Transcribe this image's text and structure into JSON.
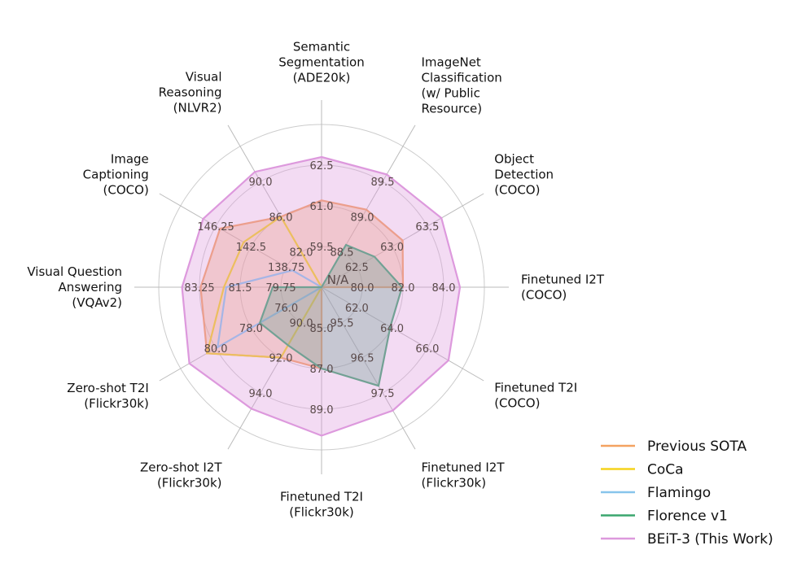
{
  "chart_data": {
    "type": "radar",
    "center_label": "N/A",
    "axes": [
      {
        "label": [
          "Semantic",
          "Segmentation",
          "(ADE20k)"
        ],
        "ticks": [
          "59.5",
          "61.0",
          "62.5"
        ]
      },
      {
        "label": [
          "ImageNet",
          "Classification",
          "(w/ Public",
          "Resource)"
        ],
        "ticks": [
          "88.5",
          "89.0",
          "89.5"
        ]
      },
      {
        "label": [
          "Object",
          "Detection",
          "(COCO)"
        ],
        "ticks": [
          "62.5",
          "63.0",
          "63.5"
        ]
      },
      {
        "label": [
          "Finetuned I2T",
          "(COCO)"
        ],
        "ticks": [
          "80.0",
          "82.0",
          "84.0"
        ]
      },
      {
        "label": [
          "Finetuned T2I",
          "(COCO)"
        ],
        "ticks": [
          "62.0",
          "64.0",
          "66.0"
        ]
      },
      {
        "label": [
          "Finetuned I2T",
          "(Flickr30k)"
        ],
        "ticks": [
          "95.5",
          "96.5",
          "97.5"
        ]
      },
      {
        "label": [
          "Finetuned T2I",
          "(Flickr30k)"
        ],
        "ticks": [
          "85.0",
          "87.0",
          "89.0"
        ]
      },
      {
        "label": [
          "Zero-shot I2T",
          "(Flickr30k)"
        ],
        "ticks": [
          "90.0",
          "92.0",
          "94.0"
        ]
      },
      {
        "label": [
          "Zero-shot T2I",
          "(Flickr30k)"
        ],
        "ticks": [
          "76.0",
          "78.0",
          "80.0"
        ]
      },
      {
        "label": [
          "Visual Question",
          "Answering",
          "(VQAv2)"
        ],
        "ticks": [
          "79.75",
          "81.5",
          "83.25"
        ]
      },
      {
        "label": [
          "Image",
          "Captioning",
          "(COCO)"
        ],
        "ticks": [
          "138.75",
          "142.5",
          "146.25"
        ]
      },
      {
        "label": [
          "Visual",
          "Reasoning",
          "(NLVR2)"
        ],
        "ticks": [
          "82.0",
          "86.0",
          "90.0"
        ]
      }
    ],
    "rings": 4,
    "grid": true,
    "series": [
      {
        "name": "Previous SOTA",
        "color": "#f4a261",
        "fill": true,
        "values": [
          61.2,
          89.1,
          63.15,
          82.0,
          null,
          null,
          87.0,
          92.0,
          80.5,
          83.2,
          145.8,
          86.0
        ]
      },
      {
        "name": "CoCa",
        "color": "#f5d31c",
        "fill": false,
        "values": [
          null,
          null,
          null,
          null,
          null,
          null,
          null,
          92.0,
          80.5,
          82.2,
          143.3,
          86.0
        ]
      },
      {
        "name": "Flamingo",
        "color": "#87c5ec",
        "fill": false,
        "values": [
          null,
          null,
          null,
          null,
          null,
          null,
          null,
          null,
          79.9,
          82.1,
          138.1,
          null
        ]
      },
      {
        "name": "Florence v1",
        "color": "#3aa66e",
        "fill": true,
        "values": [
          null,
          88.6,
          62.75,
          81.95,
          63.9,
          97.3,
          87.0,
          91.3,
          77.5,
          80.1,
          null,
          null
        ]
      },
      {
        "name": "BEiT-3 (This Work)",
        "color": "#dd99dd",
        "fill": true,
        "values": [
          62.8,
          89.6,
          63.7,
          84.8,
          67.2,
          98.0,
          90.3,
          94.9,
          81.5,
          84.0,
          147.6,
          91.1
        ]
      }
    ],
    "legend": {
      "placement": "bottom-right",
      "entries": [
        "Previous SOTA",
        "CoCa",
        "Flamingo",
        "Florence v1",
        "BEiT-3 (This Work)"
      ]
    }
  }
}
